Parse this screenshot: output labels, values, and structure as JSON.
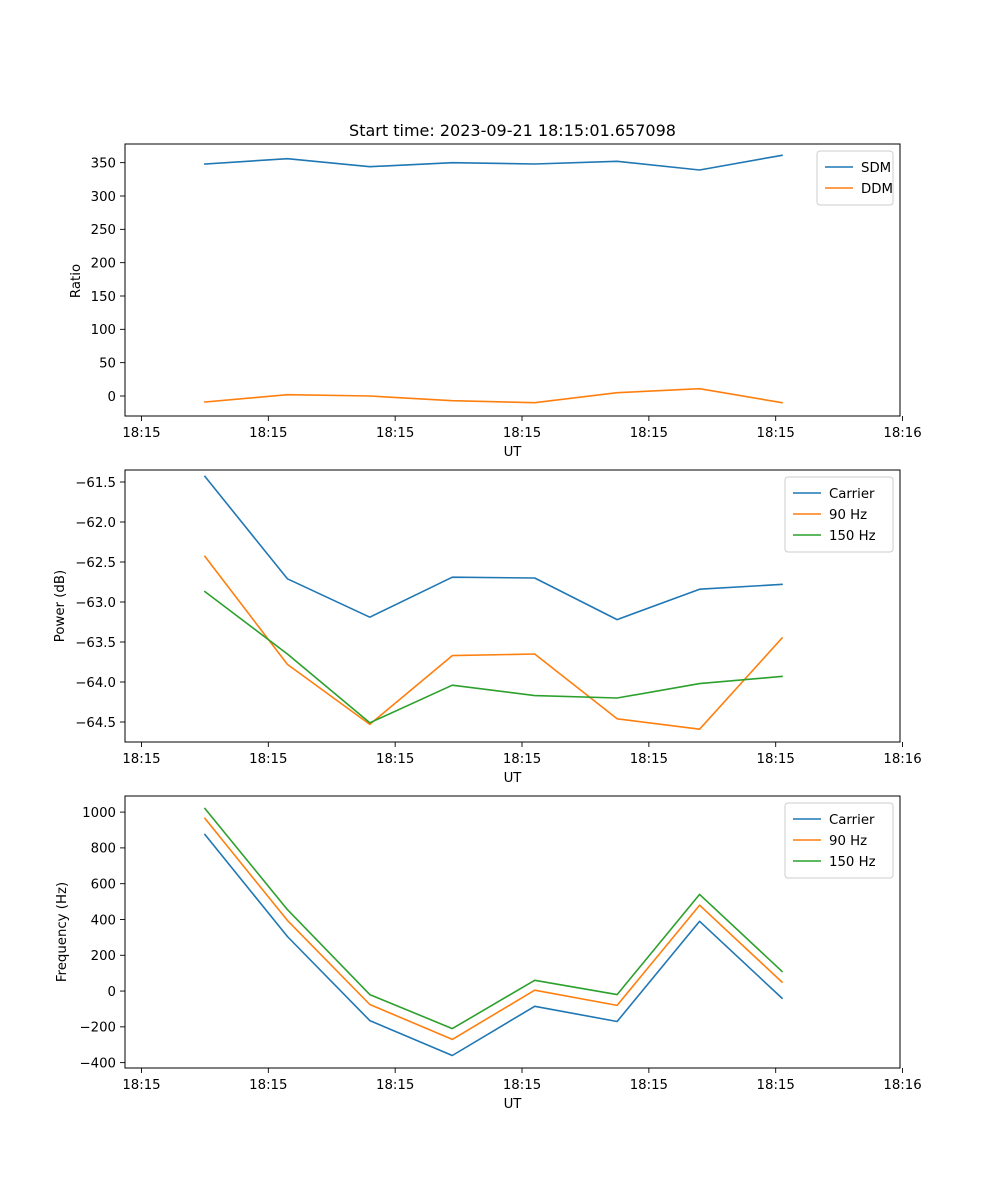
{
  "chart_data": [
    {
      "type": "line",
      "title": "Start time: 2023-09-21 18:15:01.657098",
      "xlabel": "UT",
      "ylabel": "Ratio",
      "x_tick_labels": [
        "18:15",
        "18:15",
        "18:15",
        "18:15",
        "18:15",
        "18:15",
        "18:16"
      ],
      "x_ticks": [
        0,
        1,
        2,
        3,
        4,
        5,
        6
      ],
      "xlim": [
        -0.13,
        5.98
      ],
      "x": [
        0.5,
        1.15,
        1.8,
        2.45,
        3.1,
        3.75,
        4.4,
        5.05
      ],
      "yticks": [
        0,
        50,
        100,
        150,
        200,
        250,
        300,
        350
      ],
      "ylim": [
        -30,
        378
      ],
      "legend": "top-right",
      "series": [
        {
          "name": "SDM",
          "color": "#1f77b4",
          "values": [
            348,
            356,
            344,
            350,
            348,
            352,
            339,
            361
          ]
        },
        {
          "name": "DDM",
          "color": "#ff7f0e",
          "values": [
            -9,
            2,
            0,
            -7,
            -10,
            5,
            11,
            -10
          ]
        }
      ]
    },
    {
      "type": "line",
      "title": "",
      "xlabel": "UT",
      "ylabel": "Power (dB)",
      "x_tick_labels": [
        "18:15",
        "18:15",
        "18:15",
        "18:15",
        "18:15",
        "18:15",
        "18:16"
      ],
      "x_ticks": [
        0,
        1,
        2,
        3,
        4,
        5,
        6
      ],
      "xlim": [
        -0.13,
        5.98
      ],
      "x": [
        0.5,
        1.15,
        1.8,
        2.45,
        3.1,
        3.75,
        4.4,
        5.05
      ],
      "yticks": [
        -64.5,
        -64.0,
        -63.5,
        -63.0,
        -62.5,
        -62.0,
        -61.5
      ],
      "ytick_labels": [
        "−64.5",
        "−64.0",
        "−63.5",
        "−63.0",
        "−62.5",
        "−62.0",
        "−61.5"
      ],
      "ylim": [
        -64.75,
        -61.35
      ],
      "legend": "top-right",
      "series": [
        {
          "name": "Carrier",
          "color": "#1f77b4",
          "values": [
            -61.43,
            -62.71,
            -63.19,
            -62.69,
            -62.7,
            -63.22,
            -62.84,
            -62.78
          ]
        },
        {
          "name": "90 Hz",
          "color": "#ff7f0e",
          "values": [
            -62.43,
            -63.78,
            -64.53,
            -63.67,
            -63.65,
            -64.46,
            -64.59,
            -63.45
          ]
        },
        {
          "name": "150 Hz",
          "color": "#2ca02c",
          "values": [
            -62.87,
            -63.65,
            -64.51,
            -64.04,
            -64.17,
            -64.2,
            -64.02,
            -63.93
          ]
        }
      ]
    },
    {
      "type": "line",
      "title": "",
      "xlabel": "UT",
      "ylabel": "Frequency (Hz)",
      "x_tick_labels": [
        "18:15",
        "18:15",
        "18:15",
        "18:15",
        "18:15",
        "18:15",
        "18:16"
      ],
      "x_ticks": [
        0,
        1,
        2,
        3,
        4,
        5,
        6
      ],
      "xlim": [
        -0.13,
        5.98
      ],
      "x": [
        0.5,
        1.15,
        1.8,
        2.45,
        3.1,
        3.75,
        4.4,
        5.05
      ],
      "yticks": [
        -400,
        -200,
        0,
        200,
        400,
        600,
        800,
        1000
      ],
      "ytick_labels": [
        "−400",
        "−200",
        "0",
        "200",
        "400",
        "600",
        "800",
        "1000"
      ],
      "ylim": [
        -430,
        1090
      ],
      "legend": "top-right",
      "series": [
        {
          "name": "Carrier",
          "color": "#1f77b4",
          "values": [
            875,
            305,
            -165,
            -360,
            -85,
            -170,
            390,
            -40
          ]
        },
        {
          "name": "90 Hz",
          "color": "#ff7f0e",
          "values": [
            965,
            395,
            -75,
            -270,
            5,
            -80,
            480,
            50
          ]
        },
        {
          "name": "150 Hz",
          "color": "#2ca02c",
          "values": [
            1020,
            455,
            -20,
            -210,
            60,
            -20,
            540,
            110
          ]
        }
      ]
    }
  ]
}
